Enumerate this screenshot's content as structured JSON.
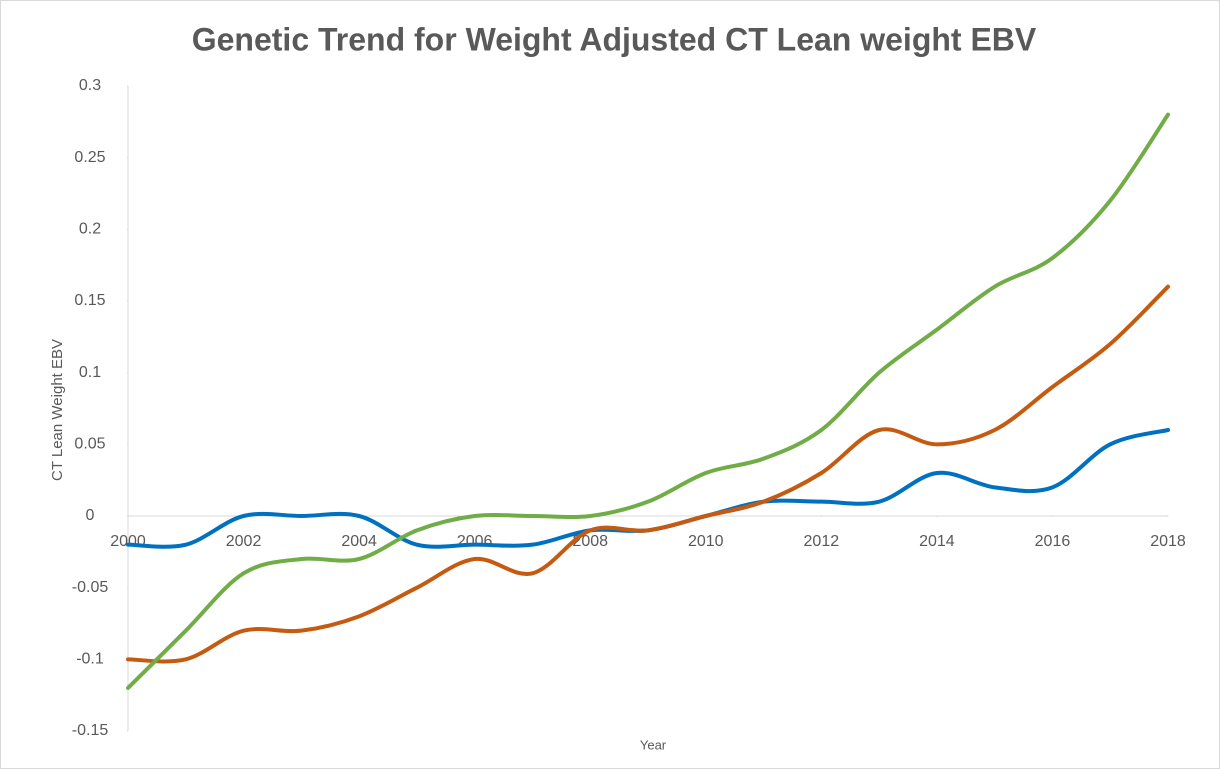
{
  "chart_data": {
    "type": "line",
    "title": "Genetic Trend for Weight Adjusted CT Lean weight EBV",
    "x_label": "Year",
    "y_label": "CT Lean Weight EBV",
    "x": [
      2000,
      2001,
      2002,
      2003,
      2004,
      2005,
      2006,
      2007,
      2008,
      2009,
      2010,
      2011,
      2012,
      2013,
      2014,
      2015,
      2016,
      2017,
      2018
    ],
    "series": [
      {
        "color": "#0070c0",
        "values": [
          -0.02,
          -0.02,
          0,
          0,
          0,
          -0.02,
          -0.02,
          -0.02,
          -0.01,
          -0.01,
          0,
          0.01,
          0.01,
          0.01,
          0.03,
          0.02,
          0.02,
          0.05,
          0.06
        ]
      },
      {
        "color": "#c55a11",
        "values": [
          -0.1,
          -0.1,
          -0.08,
          -0.08,
          -0.07,
          -0.05,
          -0.03,
          -0.04,
          -0.01,
          -0.01,
          0,
          0.01,
          0.03,
          0.06,
          0.05,
          0.06,
          0.09,
          0.12,
          0.16
        ]
      },
      {
        "color": "#70ad47",
        "values": [
          -0.12,
          -0.08,
          -0.04,
          -0.03,
          -0.03,
          -0.01,
          0,
          0,
          0,
          0.01,
          0.03,
          0.04,
          0.06,
          0.1,
          0.13,
          0.16,
          0.18,
          0.22,
          0.28
        ]
      }
    ],
    "xlim": [
      2000,
      2018
    ],
    "xticks": [
      2000,
      2002,
      2004,
      2006,
      2008,
      2010,
      2012,
      2014,
      2016,
      2018
    ],
    "ylim": [
      -0.15,
      0.3
    ],
    "yticks": [
      -0.15,
      -0.1,
      -0.05,
      0,
      0.05,
      0.1,
      0.15,
      0.2,
      0.25,
      0.3
    ],
    "grid": false,
    "smooth": true
  }
}
